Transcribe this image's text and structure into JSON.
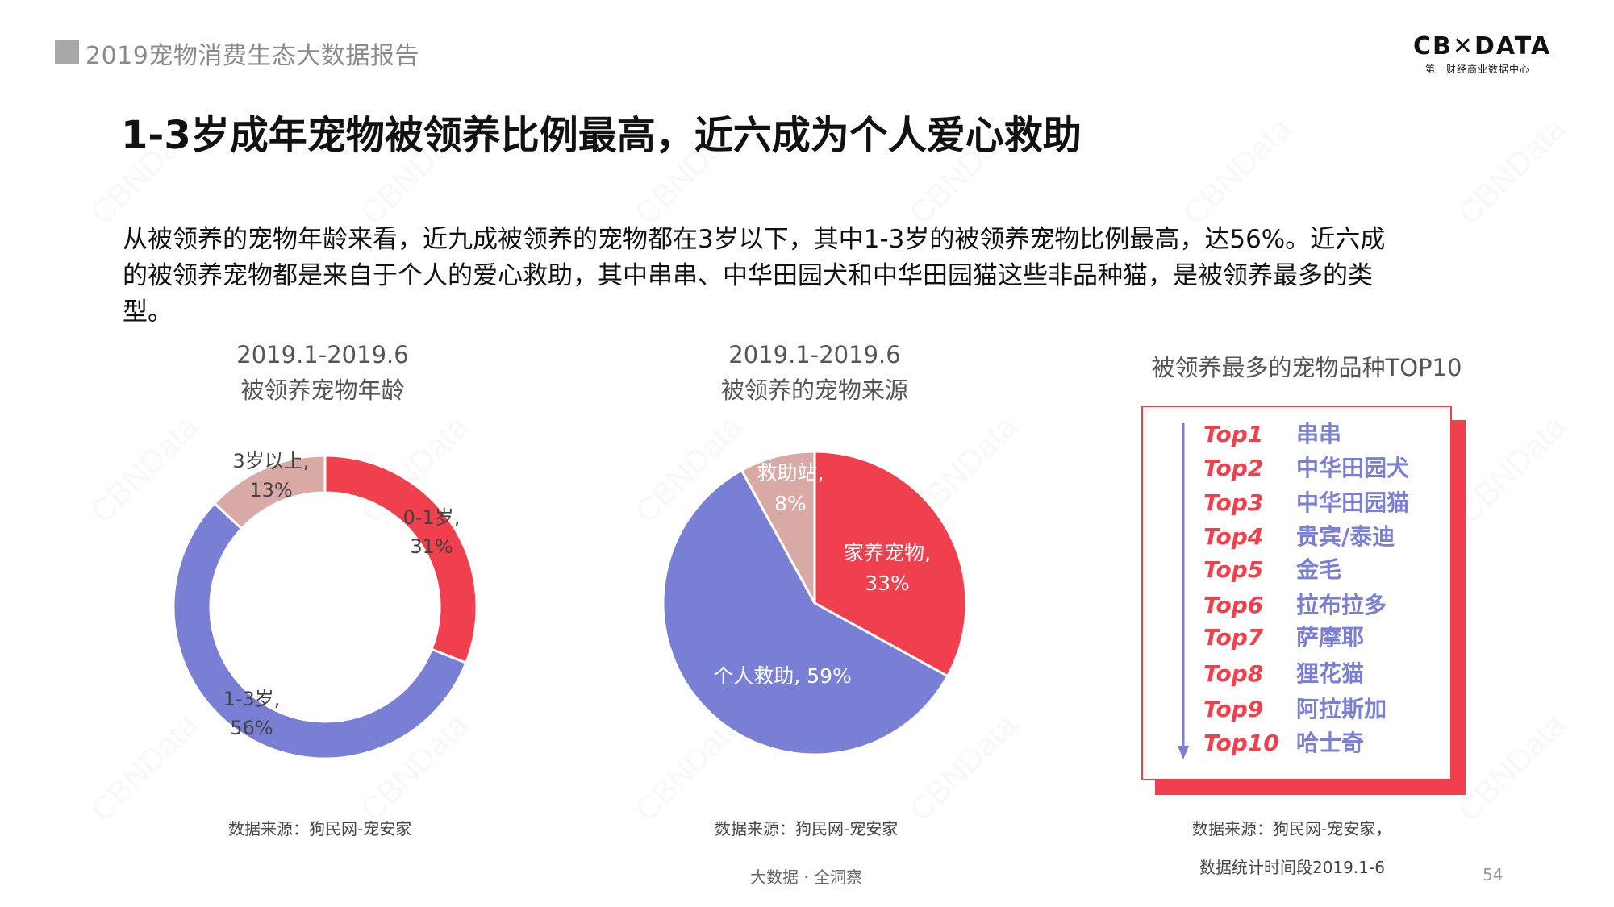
{
  "header": {
    "report_title": "2019宠物消费生态大数据报告"
  },
  "logo": {
    "main": "CB✕DATA",
    "sub": "第一财经商业数据中心"
  },
  "page_title": "1-3岁成年宠物被领养比例最高，近六成为个人爱心救助",
  "intro": {
    "line1": "从被领养的宠物年龄来看，近九成被领养的宠物都在3岁以下，其中1-3岁的被领养宠物比例最高，达56%。近六成",
    "line2": "的被领养宠物都是来自于个人的爱心救助，其中串串、中华田园犬和中华田园猫这些非品种猫，是被领养最多的类",
    "line3": "型。"
  },
  "colors": {
    "red": "#f0404d",
    "purple": "#7a7fd6",
    "pink": "#d9a9a6"
  },
  "chart_data": [
    {
      "type": "donut",
      "title_line1": "2019.1-2019.6",
      "title_line2": "被领养宠物年龄",
      "slices": [
        {
          "label_line1": "0-1岁,",
          "label_line2": "31%",
          "value": 31,
          "color": "#f0404d"
        },
        {
          "label_line1": "1-3岁,",
          "label_line2": "56%",
          "value": 56,
          "color": "#7a7fd6"
        },
        {
          "label_line1": "3岁以上,",
          "label_line2": "13%",
          "value": 13,
          "color": "#d9a9a6"
        }
      ],
      "source": "数据来源：狗民网-宠安家"
    },
    {
      "type": "pie",
      "title_line1": "2019.1-2019.6",
      "title_line2": "被领养的宠物来源",
      "slices": [
        {
          "label_line1": "家养宠物,",
          "label_line2": "33%",
          "value": 33,
          "color": "#f0404d"
        },
        {
          "label_line1": "个人救助, 59%",
          "label_line2": "",
          "value": 59,
          "color": "#7a7fd6"
        },
        {
          "label_line1": "救助站,",
          "label_line2": "8%",
          "value": 8,
          "color": "#d9a9a6"
        }
      ],
      "source": "数据来源：狗民网-宠安家"
    },
    {
      "type": "table",
      "title": "被领养最多的宠物品种TOP10",
      "rows": [
        {
          "rank": "Top1",
          "name": "串串"
        },
        {
          "rank": "Top2",
          "name": "中华田园犬"
        },
        {
          "rank": "Top3",
          "name": "中华田园猫"
        },
        {
          "rank": "Top4",
          "name": "贵宾/泰迪"
        },
        {
          "rank": "Top5",
          "name": "金毛"
        },
        {
          "rank": "Top6",
          "name": "拉布拉多"
        },
        {
          "rank": "Top7",
          "name": "萨摩耶"
        },
        {
          "rank": "Top8",
          "name": "狸花猫"
        },
        {
          "rank": "Top9",
          "name": "阿拉斯加"
        },
        {
          "rank": "Top10",
          "name": "哈士奇"
        }
      ],
      "source_line1": "数据来源：狗民网-宠安家，",
      "source_line2": "数据统计时间段2019.1-6"
    }
  ],
  "footer": {
    "center": "大数据 · 全洞察",
    "page": "54"
  },
  "watermark": "CBNData"
}
